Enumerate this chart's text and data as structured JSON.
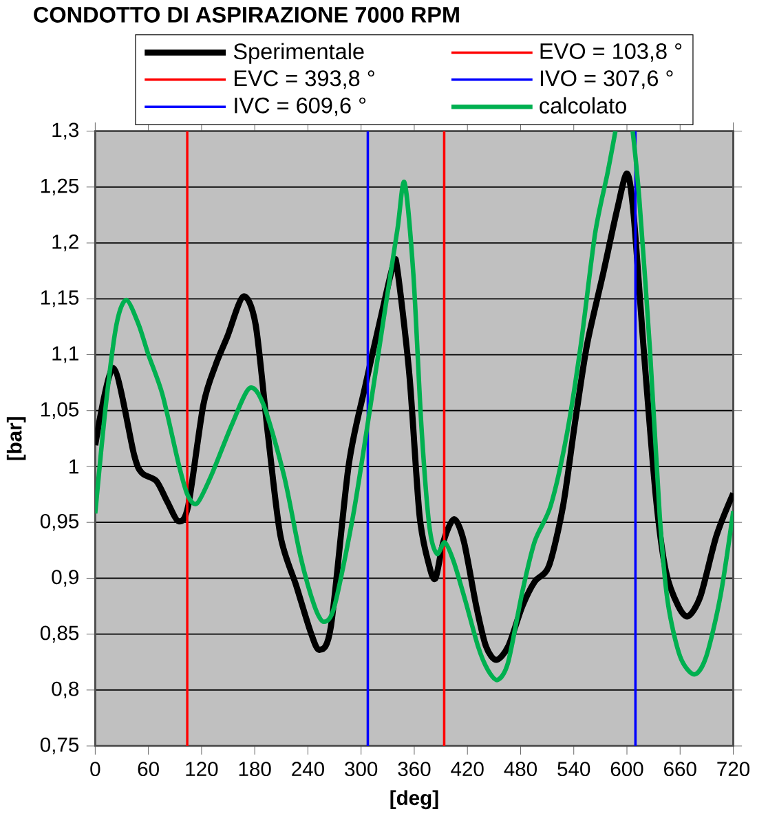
{
  "chart_data": {
    "type": "line",
    "title": "CONDOTTO DI ASPIRAZIONE 7000 RPM",
    "xlabel": "[deg]",
    "ylabel": "[bar]",
    "xlim": [
      0,
      720
    ],
    "xticks": [
      0,
      60,
      120,
      180,
      240,
      300,
      360,
      420,
      480,
      540,
      600,
      660,
      720
    ],
    "ylim": [
      0.75,
      1.3
    ],
    "yticks": [
      {
        "value": 0.75,
        "label": "0,75"
      },
      {
        "value": 0.8,
        "label": "0,8"
      },
      {
        "value": 0.85,
        "label": "0,85"
      },
      {
        "value": 0.9,
        "label": "0,9"
      },
      {
        "value": 0.95,
        "label": "0,95"
      },
      {
        "value": 1,
        "label": "1"
      },
      {
        "value": 1.05,
        "label": "1,05"
      },
      {
        "value": 1.1,
        "label": "1,1"
      },
      {
        "value": 1.15,
        "label": "1,15"
      },
      {
        "value": 1.2,
        "label": "1,2"
      },
      {
        "value": 1.25,
        "label": "1,25"
      },
      {
        "value": 1.3,
        "label": "1,3"
      }
    ],
    "grid": "y",
    "legend": "top",
    "series": [
      {
        "name": "Sperimentale",
        "color": "#000000",
        "x": [
          0,
          20.5,
          44,
          53,
          69,
          81,
          94,
          105,
          122,
          136,
          149,
          167,
          181,
          195,
          209,
          227,
          243,
          253,
          266,
          286,
          305,
          323,
          336.5,
          341,
          354.5,
          366,
          377,
          384,
          393,
          405,
          416,
          430,
          441,
          452.5,
          466,
          482,
          496,
          512,
          528,
          541,
          555,
          573,
          589,
          600,
          607.5,
          619,
          632.5,
          644,
          658,
          669,
          683,
          701,
          720
        ],
        "values": [
          1.019,
          1.088,
          1.01,
          0.994,
          0.987,
          0.969,
          0.951,
          0.965,
          1.055,
          1.091,
          1.116,
          1.152,
          1.127,
          1.028,
          0.938,
          0.893,
          0.852,
          0.836,
          0.857,
          1.001,
          1.073,
          1.136,
          1.181,
          1.176,
          1.082,
          0.956,
          0.911,
          0.9,
          0.933,
          0.953,
          0.933,
          0.875,
          0.839,
          0.827,
          0.839,
          0.875,
          0.897,
          0.911,
          0.965,
          1.037,
          1.109,
          1.172,
          1.23,
          1.262,
          1.226,
          1.104,
          0.974,
          0.906,
          0.875,
          0.866,
          0.884,
          0.938,
          0.976
        ]
      },
      {
        "name": "calcolato",
        "color": "#00b050",
        "x": [
          0,
          12,
          24,
          35,
          49,
          60,
          76,
          94.5,
          104.5,
          115,
          131,
          154,
          174,
          190,
          213,
          231.5,
          247.5,
          258,
          270,
          291,
          309,
          327,
          341,
          349,
          359,
          368,
          377,
          385.5,
          394.5,
          404.5,
          418,
          432,
          443,
          454,
          466,
          482,
          496,
          514,
          532,
          548,
          564,
          578,
          587,
          597,
          606.5,
          614,
          626,
          637,
          646,
          660,
          676,
          689.5,
          705.5,
          720
        ],
        "values": [
          0.958,
          1.055,
          1.127,
          1.149,
          1.127,
          1.1,
          1.064,
          1.001,
          0.974,
          0.967,
          0.992,
          1.037,
          1.07,
          1.055,
          0.992,
          0.92,
          0.875,
          0.861,
          0.875,
          0.956,
          1.046,
          1.14,
          1.212,
          1.254,
          1.172,
          1.037,
          0.947,
          0.922,
          0.932,
          0.915,
          0.879,
          0.839,
          0.818,
          0.809,
          0.825,
          0.888,
          0.933,
          0.965,
          1.028,
          1.109,
          1.208,
          1.262,
          1.3,
          null,
          1.3,
          1.239,
          1.104,
          0.956,
          0.879,
          0.83,
          0.814,
          0.83,
          0.884,
          0.96
        ]
      }
    ],
    "ref_lines": [
      {
        "axis": "x",
        "value": 103.8,
        "label": "EVO = 103,8 °",
        "color": "#ff0000"
      },
      {
        "axis": "x",
        "value": 393.8,
        "label": "EVC = 393,8 °",
        "color": "#ff0000"
      },
      {
        "axis": "x",
        "value": 307.6,
        "label": "IVO = 307,6 °",
        "color": "#0000ff"
      },
      {
        "axis": "x",
        "value": 609.6,
        "label": "IVC = 609,6 °",
        "color": "#0000ff"
      }
    ]
  }
}
